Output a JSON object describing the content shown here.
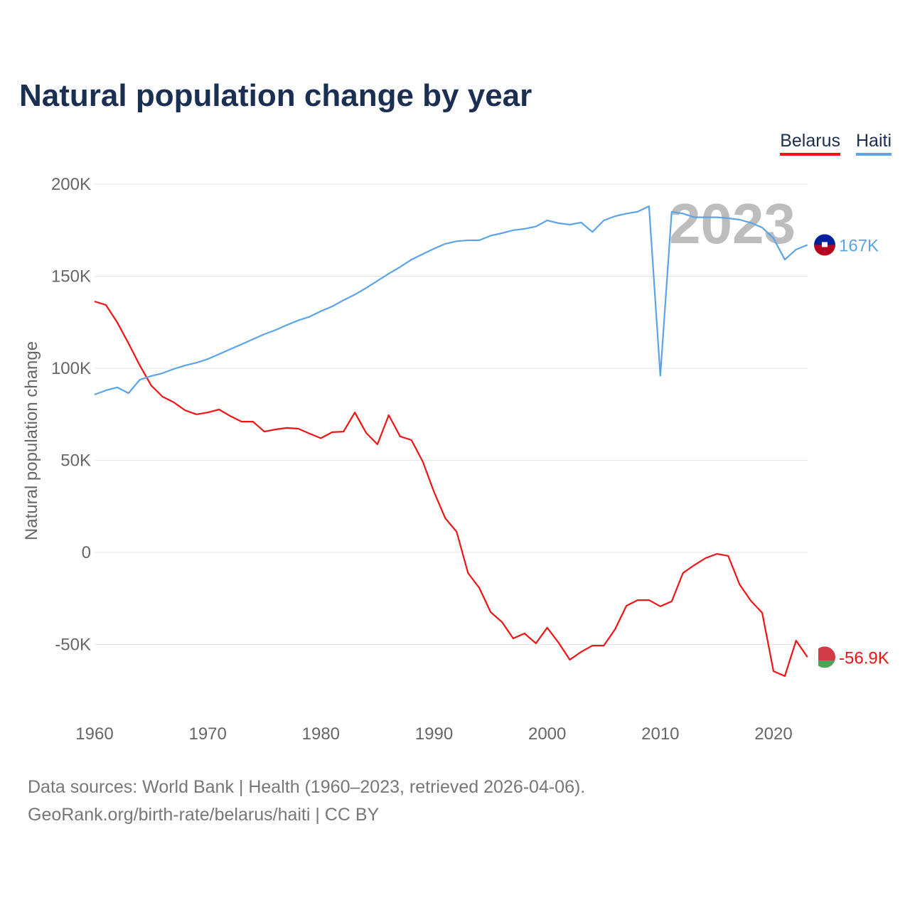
{
  "chart_data": {
    "type": "line",
    "title": "Natural population change by year",
    "ylabel": "Natural population change",
    "xlabel": "",
    "ylim": [
      -80000,
      200000
    ],
    "xlim": [
      1960,
      2023
    ],
    "y_ticks": [
      200000,
      150000,
      100000,
      50000,
      0,
      -50000
    ],
    "y_tick_labels": [
      "200K",
      "150K",
      "100K",
      "50K",
      "0",
      "-50K"
    ],
    "x_ticks": [
      1960,
      1970,
      1980,
      1990,
      2000,
      2010,
      2020
    ],
    "x_tick_labels": [
      "1960",
      "1970",
      "1980",
      "1990",
      "2000",
      "2010",
      "2020"
    ],
    "grid": true,
    "legend_position": "top-right",
    "year_watermark": "2023",
    "x": [
      1960,
      1961,
      1962,
      1963,
      1964,
      1965,
      1966,
      1967,
      1968,
      1969,
      1970,
      1971,
      1972,
      1973,
      1974,
      1975,
      1976,
      1977,
      1978,
      1979,
      1980,
      1981,
      1982,
      1983,
      1984,
      1985,
      1986,
      1987,
      1988,
      1989,
      1990,
      1991,
      1992,
      1993,
      1994,
      1995,
      1996,
      1997,
      1998,
      1999,
      2000,
      2001,
      2002,
      2003,
      2004,
      2005,
      2006,
      2007,
      2008,
      2009,
      2010,
      2011,
      2012,
      2013,
      2014,
      2015,
      2016,
      2017,
      2018,
      2019,
      2020,
      2021,
      2022,
      2023
    ],
    "series": [
      {
        "name": "Belarus",
        "color": "#f01414",
        "end_label": "-56.9K",
        "values": [
          136300,
          134400,
          125000,
          113500,
          101500,
          90700,
          84600,
          81500,
          77200,
          75000,
          76000,
          77600,
          74000,
          71000,
          71000,
          65600,
          66800,
          67600,
          67200,
          64500,
          62000,
          65300,
          65600,
          76000,
          64900,
          58700,
          74500,
          63000,
          61000,
          49400,
          32800,
          18500,
          11200,
          -11200,
          -19300,
          -32400,
          -37800,
          -46700,
          -44000,
          -49400,
          -40900,
          -49000,
          -58300,
          -54000,
          -50600,
          -50600,
          -41700,
          -29000,
          -25900,
          -25900,
          -29300,
          -26600,
          -11200,
          -6900,
          -3100,
          -800,
          -1900,
          -17400,
          -26300,
          -32800,
          -64500,
          -67200,
          -47900,
          -56900
        ]
      },
      {
        "name": "Haiti",
        "color": "#5ba4e8",
        "end_label": "167K",
        "values": [
          85700,
          88000,
          89600,
          86500,
          93800,
          95800,
          97300,
          99600,
          101500,
          103000,
          105000,
          107700,
          110400,
          113000,
          115800,
          118500,
          120800,
          123500,
          126000,
          128000,
          131000,
          133600,
          137000,
          140000,
          143600,
          147500,
          151400,
          155000,
          159000,
          162000,
          165000,
          167600,
          169000,
          169500,
          169500,
          172000,
          173400,
          175000,
          175700,
          177000,
          180300,
          178800,
          178000,
          179200,
          174000,
          180300,
          182600,
          184000,
          185000,
          188000,
          96000,
          185000,
          184000,
          182000,
          182000,
          182000,
          181500,
          180700,
          179000,
          176400,
          170600,
          159000,
          164500,
          167000
        ]
      }
    ]
  },
  "footer": {
    "line1": "Data sources: World Bank | Health (1960–2023, retrieved 2026-04-06).",
    "line2": "GeoRank.org/birth-rate/belarus/haiti | CC BY"
  }
}
